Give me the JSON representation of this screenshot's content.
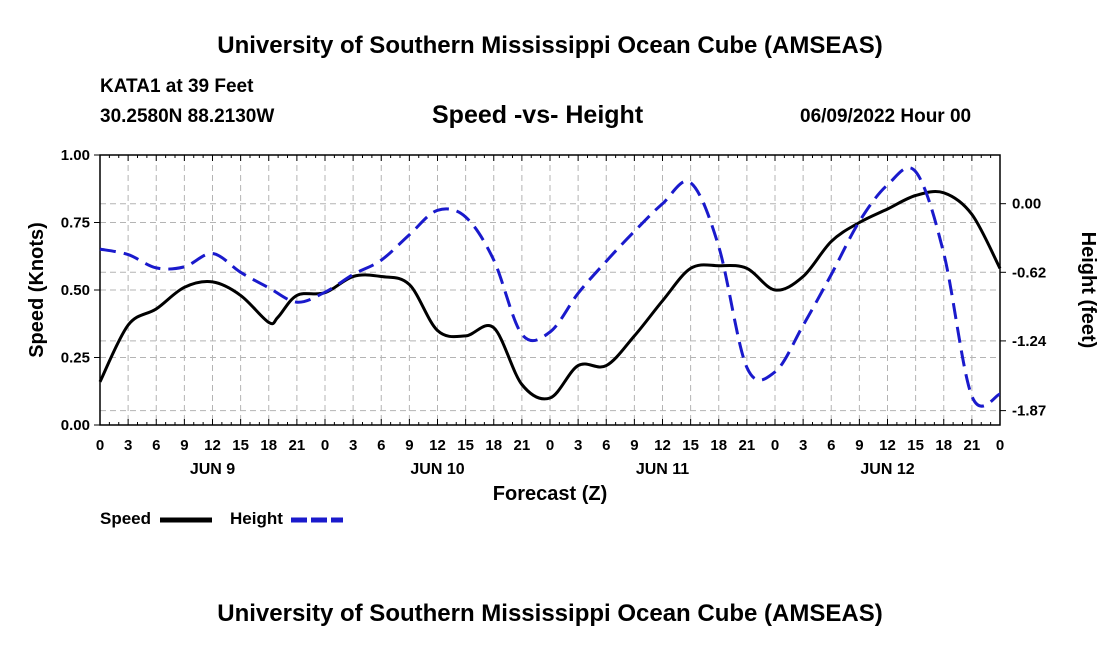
{
  "header": {
    "title": "University of Southern Mississippi Ocean Cube (AMSEAS)",
    "station": "KATA1 at 39 Feet",
    "coordinates": "30.2580N  88.2130W",
    "subtitle": "Speed -vs- Height",
    "datetime": "06/09/2022 Hour 00"
  },
  "footer": {
    "title": "University of Southern Mississippi Ocean Cube (AMSEAS)"
  },
  "legend": {
    "speed_label": "Speed",
    "height_label": "Height"
  },
  "colors": {
    "speed": "#000000",
    "height": "#1a1acc",
    "grid": "#b4b4b4"
  },
  "chart_data": {
    "type": "line",
    "xlabel": "Forecast (Z)",
    "ylabel": "Speed (Knots)",
    "y2label": "Height (feet)",
    "xlim": [
      0,
      96
    ],
    "ylim": [
      0,
      1.0
    ],
    "y2lim": [
      -2.0,
      0.44
    ],
    "x_tick_labels": [
      "0",
      "3",
      "6",
      "9",
      "12",
      "15",
      "18",
      "21",
      "0",
      "3",
      "6",
      "9",
      "12",
      "15",
      "18",
      "21",
      "0",
      "3",
      "6",
      "9",
      "12",
      "15",
      "18",
      "21",
      "0",
      "3",
      "6",
      "9",
      "12",
      "15",
      "18",
      "21",
      "0"
    ],
    "y_ticks": [
      "0.00",
      "0.25",
      "0.50",
      "0.75",
      "1.00"
    ],
    "y2_ticks": [
      "0.00",
      "-0.62",
      "-1.24",
      "-1.87"
    ],
    "day_labels": [
      {
        "label": "JUN 9",
        "x": 12
      },
      {
        "label": "JUN 10",
        "x": 36
      },
      {
        "label": "JUN 11",
        "x": 60
      },
      {
        "label": "JUN 12",
        "x": 84
      }
    ],
    "series": [
      {
        "name": "Speed",
        "axis": "left",
        "x": [
          0,
          3,
          6,
          9,
          12,
          15,
          18,
          19,
          21,
          24,
          27,
          30,
          33,
          36,
          39,
          42,
          45,
          48,
          51,
          54,
          57,
          60,
          63,
          66,
          69,
          72,
          75,
          78,
          81,
          84,
          87,
          90,
          93,
          96
        ],
        "values": [
          0.16,
          0.37,
          0.43,
          0.51,
          0.53,
          0.48,
          0.38,
          0.4,
          0.48,
          0.49,
          0.55,
          0.55,
          0.52,
          0.35,
          0.33,
          0.36,
          0.15,
          0.1,
          0.22,
          0.22,
          0.33,
          0.46,
          0.58,
          0.59,
          0.58,
          0.5,
          0.55,
          0.68,
          0.75,
          0.8,
          0.85,
          0.86,
          0.78,
          0.58
        ]
      },
      {
        "name": "Height",
        "axis": "right",
        "x": [
          0,
          3,
          6,
          9,
          12,
          15,
          18,
          21,
          24,
          27,
          30,
          33,
          36,
          39,
          42,
          45,
          48,
          51,
          54,
          57,
          60,
          63,
          66,
          69,
          72,
          75,
          78,
          81,
          84,
          87,
          90,
          93,
          96
        ],
        "values": [
          -0.41,
          -0.46,
          -0.58,
          -0.57,
          -0.45,
          -0.62,
          -0.76,
          -0.89,
          -0.8,
          -0.64,
          -0.51,
          -0.28,
          -0.06,
          -0.12,
          -0.51,
          -1.18,
          -1.16,
          -0.81,
          -0.52,
          -0.25,
          0.0,
          0.19,
          -0.39,
          -1.48,
          -1.52,
          -1.1,
          -0.64,
          -0.16,
          0.17,
          0.29,
          -0.45,
          -1.74,
          -1.72
        ]
      }
    ]
  }
}
